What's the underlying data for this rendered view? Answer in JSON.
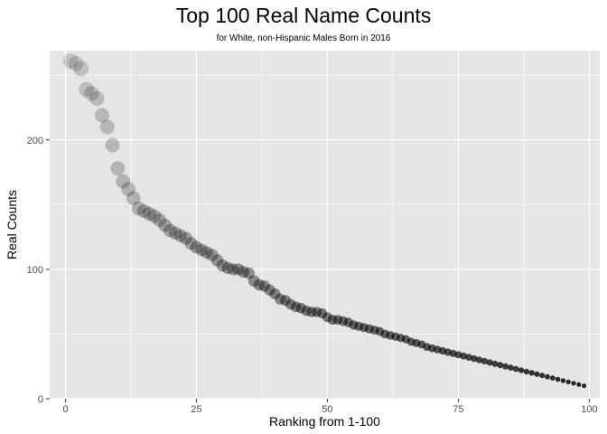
{
  "chart_data": {
    "type": "scatter",
    "title": "Top 100 Real Name Counts",
    "subtitle": "for White, non-Hispanic Males Born in 2016",
    "xlabel": "Ranking from 1-100",
    "ylabel": "Real Counts",
    "xlim": [
      -3,
      102
    ],
    "ylim": [
      0,
      269
    ],
    "xticks": [
      0,
      25,
      50,
      75,
      100
    ],
    "yticks": [
      0,
      100,
      200
    ],
    "grid": true,
    "background": "#e5e5e5",
    "gridline_color": "#ffffff",
    "point_color": "#000000",
    "x": [
      1,
      2,
      3,
      4,
      5,
      6,
      7,
      8,
      9,
      10,
      11,
      12,
      13,
      14,
      15,
      16,
      17,
      18,
      19,
      20,
      21,
      22,
      23,
      24,
      25,
      26,
      27,
      28,
      29,
      30,
      31,
      32,
      33,
      34,
      35,
      36,
      37,
      38,
      39,
      40,
      41,
      42,
      43,
      44,
      45,
      46,
      47,
      48,
      49,
      50,
      51,
      52,
      53,
      54,
      55,
      56,
      57,
      58,
      59,
      60,
      61,
      62,
      63,
      64,
      65,
      66,
      67,
      68,
      69,
      70,
      71,
      72,
      73,
      74,
      75,
      76,
      77,
      78,
      79,
      80,
      81,
      82,
      83,
      84,
      85,
      86,
      87,
      88,
      89,
      90,
      91,
      92,
      93,
      94,
      95,
      96,
      97,
      98,
      99
    ],
    "y": [
      261,
      259,
      255,
      239,
      236,
      232,
      219,
      210,
      196,
      178,
      168,
      162,
      155,
      147,
      145,
      143,
      141,
      138,
      134,
      130,
      128,
      126,
      124,
      120,
      117,
      115,
      113,
      111,
      107,
      103,
      101,
      100,
      100,
      98,
      97,
      91,
      88,
      87,
      84,
      81,
      77,
      76,
      73,
      71,
      70,
      68,
      67,
      67,
      66,
      63,
      61,
      61,
      60,
      59,
      57,
      56,
      55,
      54,
      53,
      52,
      50,
      49,
      48,
      47,
      46,
      44,
      43,
      42,
      40,
      39,
      38,
      37,
      36,
      35,
      34,
      33,
      32,
      31,
      30,
      29,
      28,
      27,
      26,
      25,
      24,
      23,
      22,
      21,
      20,
      19,
      18,
      17,
      16,
      15,
      14,
      13,
      12,
      11,
      10
    ]
  }
}
